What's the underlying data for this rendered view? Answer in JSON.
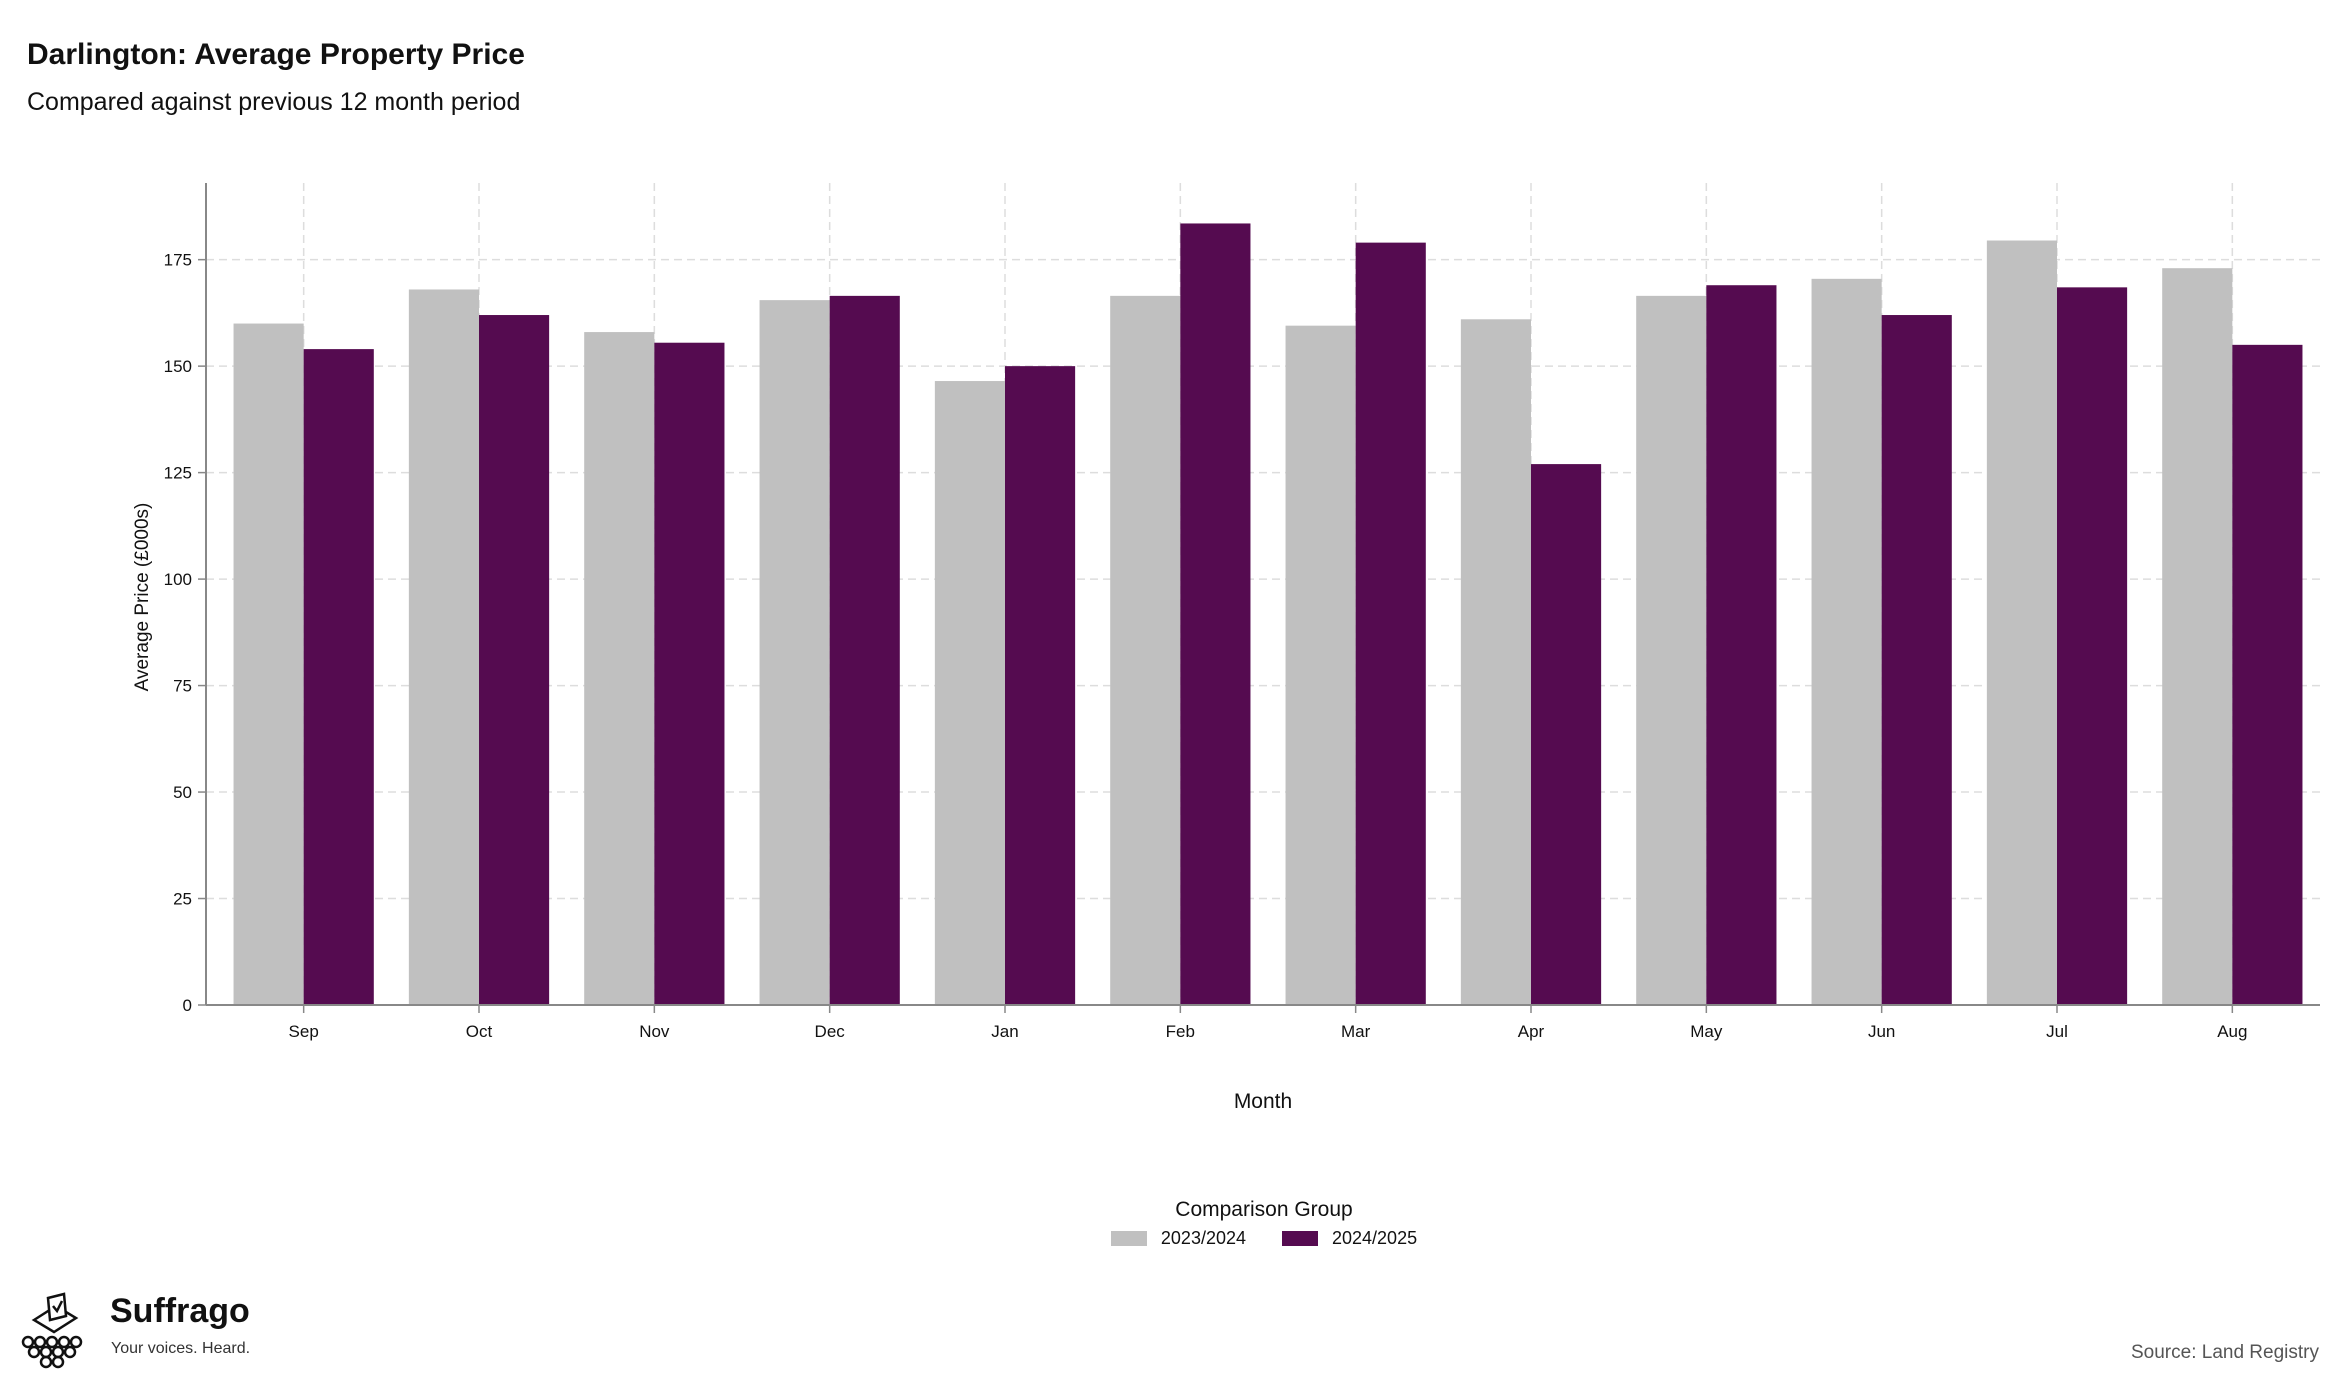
{
  "title": "Darlington: Average Property Price",
  "subtitle": "Compared against previous 12 month period",
  "source": "Source: Land Registry",
  "logo": {
    "name": "Suffrago",
    "tagline": "Your voices. Heard.",
    "icon": "ballot-box-icon"
  },
  "legend": {
    "title": "Comparison Group"
  },
  "colors": {
    "series_2023": "#c0c0c0",
    "series_2024": "#550b50",
    "grid": "#dddddd",
    "axis": "#888888"
  },
  "chart_data": {
    "type": "bar",
    "title": "Darlington: Average Property Price",
    "subtitle": "Compared against previous 12 month period",
    "xlabel": "Month",
    "ylabel": "Average Price (£000s)",
    "ylim": [
      0,
      193
    ],
    "yticks": [
      0,
      25,
      50,
      75,
      100,
      125,
      150,
      175
    ],
    "grid": true,
    "legend_position": "bottom",
    "categories": [
      "Sep",
      "Oct",
      "Nov",
      "Dec",
      "Jan",
      "Feb",
      "Mar",
      "Apr",
      "May",
      "Jun",
      "Jul",
      "Aug"
    ],
    "series": [
      {
        "name": "2023/2024",
        "color": "#c0c0c0",
        "values": [
          160,
          168,
          158,
          165.5,
          146.5,
          166.5,
          159.5,
          161,
          166.5,
          170.5,
          179.5,
          173
        ]
      },
      {
        "name": "2024/2025",
        "color": "#550b50",
        "values": [
          154,
          162,
          155.5,
          166.5,
          150,
          183.5,
          179,
          127,
          169,
          162,
          168.5,
          155
        ]
      }
    ]
  }
}
